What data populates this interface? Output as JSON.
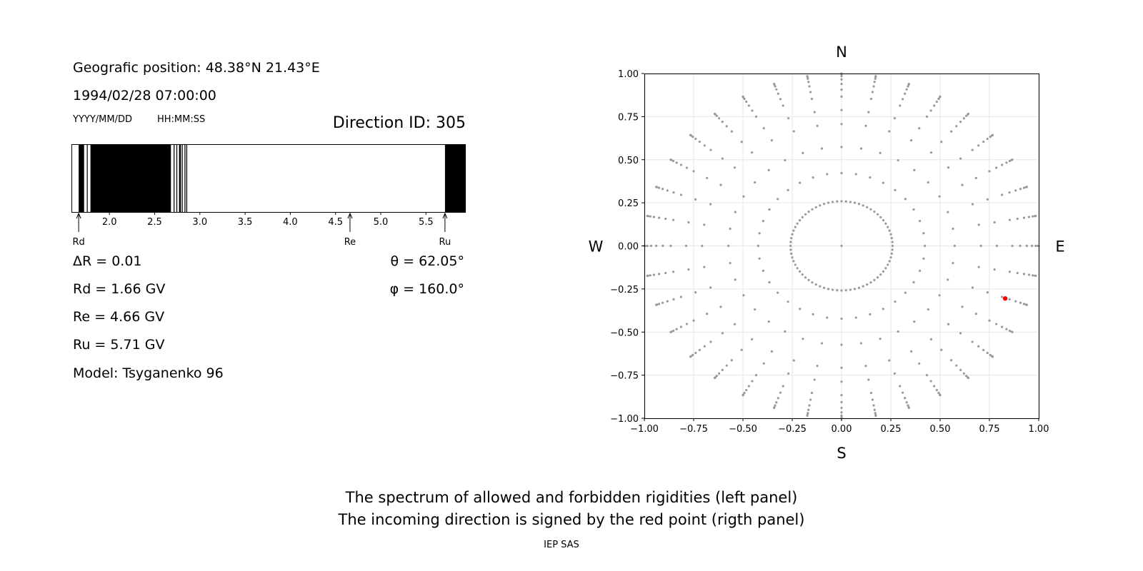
{
  "left_panel": {
    "position": "Geografic position: 48.38°N 21.43°E",
    "datetime": "1994/02/28 07:00:00",
    "date_format": "YYYY/MM/DD",
    "time_format": "HH:MM:SS",
    "direction_id": "Direction ID: 305",
    "delta_r": "ΔR = 0.01",
    "theta": "θ = 62.05°",
    "phi": "φ = 160.0°",
    "rd": "Rd = 1.66 GV",
    "re": "Re = 4.66 GV",
    "ru": "Ru = 5.71 GV",
    "model": "Model: Tsyganenko 96"
  },
  "chart_data": [
    {
      "type": "spectrum",
      "description_key": "rigidity spectrum (black = forbidden, white = allowed)",
      "x_range": [
        1.58,
        5.94
      ],
      "x_ticks": [
        2.0,
        2.5,
        3.0,
        3.5,
        4.0,
        4.5,
        5.0,
        5.5
      ],
      "x_tick_labels": [
        "2.0",
        "2.5",
        "3.0",
        "3.5",
        "4.0",
        "4.5",
        "5.0",
        "5.5"
      ],
      "forbidden_bands": [
        [
          1.66,
          1.72
        ],
        [
          1.75,
          1.76
        ],
        [
          1.79,
          2.68
        ],
        [
          2.71,
          2.72
        ],
        [
          2.74,
          2.75
        ],
        [
          2.77,
          2.79
        ],
        [
          2.8,
          2.81
        ],
        [
          2.83,
          2.84
        ],
        [
          2.85,
          2.86
        ],
        [
          5.71,
          5.94
        ]
      ],
      "markers": [
        {
          "label": "Rd",
          "value": 1.66
        },
        {
          "label": "Re",
          "value": 4.66
        },
        {
          "label": "Ru",
          "value": 5.71
        }
      ]
    },
    {
      "type": "scatter",
      "xlim": [
        -1.0,
        1.0
      ],
      "ylim": [
        -1.0,
        1.0
      ],
      "x_ticks": [
        -1.0,
        -0.75,
        -0.5,
        -0.25,
        0.0,
        0.25,
        0.5,
        0.75,
        1.0
      ],
      "x_tick_labels": [
        "−1.00",
        "−0.75",
        "−0.50",
        "−0.25",
        "0.00",
        "0.25",
        "0.50",
        "0.75",
        "1.00"
      ],
      "y_ticks": [
        1.0,
        0.75,
        0.5,
        0.25,
        0.0,
        -0.25,
        -0.5,
        -0.75,
        -1.0
      ],
      "y_tick_labels": [
        "1.00",
        "0.75",
        "0.50",
        "0.25",
        "0.00",
        "−0.25",
        "−0.50",
        "−0.75",
        "−1.00"
      ],
      "grid": true,
      "grid_pattern": {
        "zenith_angles_deg": [
          0,
          15,
          25,
          35,
          45,
          52,
          60,
          65,
          70,
          75,
          80,
          85,
          90
        ],
        "azimuth_step_deg": 10,
        "inner_ring_zenith_deg": 15,
        "inner_ring_azimuth_step_deg": 5
      },
      "direction_labels": {
        "north": "N",
        "south": "S",
        "west": "W",
        "east": "E"
      },
      "highlighted_point": {
        "x": 0.83,
        "y": -0.305
      },
      "point_color": "#999999",
      "highlight_color": "#ff0000"
    }
  ],
  "caption": {
    "line1": "The spectrum of allowed and forbidden rigidities (left panel)",
    "line2": "The incoming direction is signed by the red point (rigth panel)",
    "credit": "IEP SAS"
  }
}
